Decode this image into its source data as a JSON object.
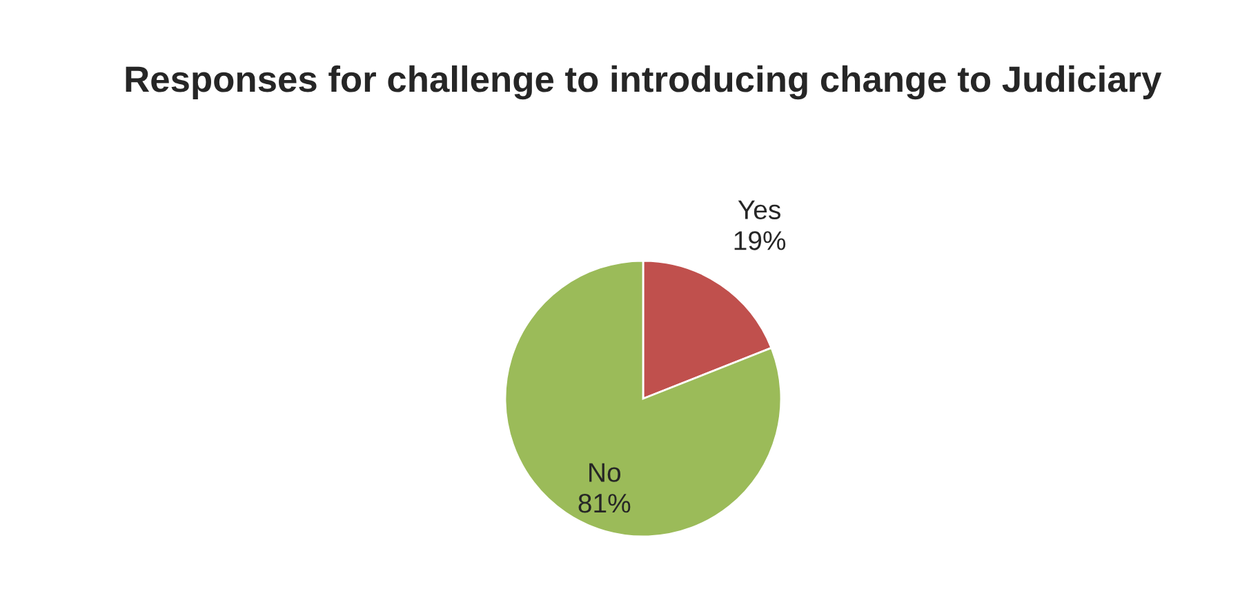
{
  "chart_data": {
    "type": "pie",
    "title": "Responses for challenge to introducing change to Judiciary",
    "categories": [
      "Yes",
      "No"
    ],
    "values": [
      19,
      81
    ],
    "value_labels": [
      "19%",
      "81%"
    ],
    "colors": [
      "#c0504d",
      "#9bbb59"
    ],
    "legend": false
  }
}
